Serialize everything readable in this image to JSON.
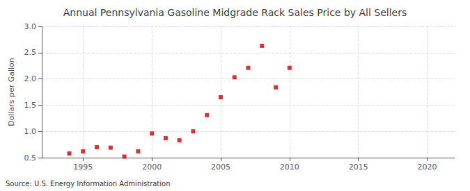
{
  "chart_data": {
    "type": "scatter",
    "title": "Annual Pennsylvania Gasoline Midgrade Rack Sales Price by All Sellers",
    "ylabel": "Dollars per Gallon",
    "source": "Source: U.S. Energy Information Administration",
    "x": [
      1994,
      1995,
      1996,
      1997,
      1998,
      1999,
      2000,
      2001,
      2002,
      2003,
      2004,
      2005,
      2006,
      2007,
      2008,
      2009,
      2010
    ],
    "values": [
      0.58,
      0.62,
      0.7,
      0.69,
      0.52,
      0.62,
      0.96,
      0.87,
      0.83,
      1.0,
      1.31,
      1.65,
      2.03,
      2.21,
      2.63,
      1.84,
      2.21
    ],
    "color": "#cc0000",
    "marker": "square",
    "xlim": [
      1992,
      2022
    ],
    "xticks": [
      1995,
      2000,
      2005,
      2010,
      2015,
      2020
    ],
    "ylim": [
      0.5,
      3.0
    ],
    "yticks": [
      0.5,
      {
        "value": 1,
        "label": "1.0"
      },
      1.5,
      {
        "value": 2,
        "label": "2.0"
      },
      2.5,
      {
        "value": 3,
        "label": "3.0"
      }
    ],
    "grid": true
  }
}
